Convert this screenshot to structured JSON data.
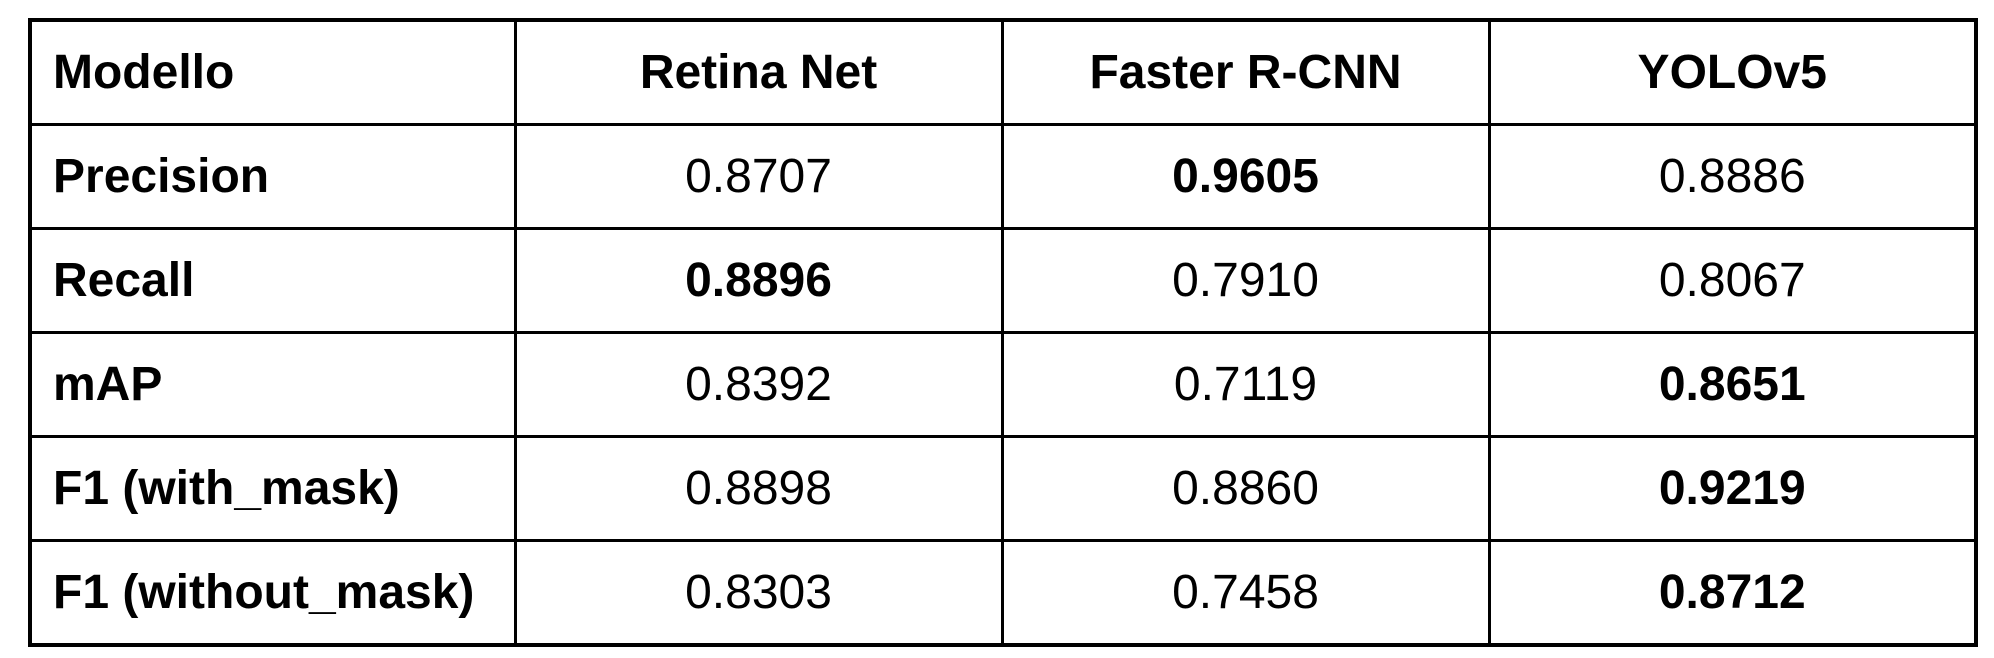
{
  "chart_data": {
    "type": "table",
    "header_label": "Modello",
    "columns": [
      "Retina Net",
      "Faster R-CNN",
      "YOLOv5"
    ],
    "rows": [
      {
        "label": "Precision",
        "values": [
          "0.8707",
          "0.9605",
          "0.8886"
        ],
        "best_index": 1
      },
      {
        "label": "Recall",
        "values": [
          "0.8896",
          "0.7910",
          "0.8067"
        ],
        "best_index": 0
      },
      {
        "label": "mAP",
        "values": [
          "0.8392",
          "0.7119",
          "0.8651"
        ],
        "best_index": 2
      },
      {
        "label": "F1 (with_mask)",
        "values": [
          "0.8898",
          "0.8860",
          "0.9219"
        ],
        "best_index": 2
      },
      {
        "label": "F1 (without_mask)",
        "values": [
          "0.8303",
          "0.7458",
          "0.8712"
        ],
        "best_index": 2
      }
    ]
  }
}
